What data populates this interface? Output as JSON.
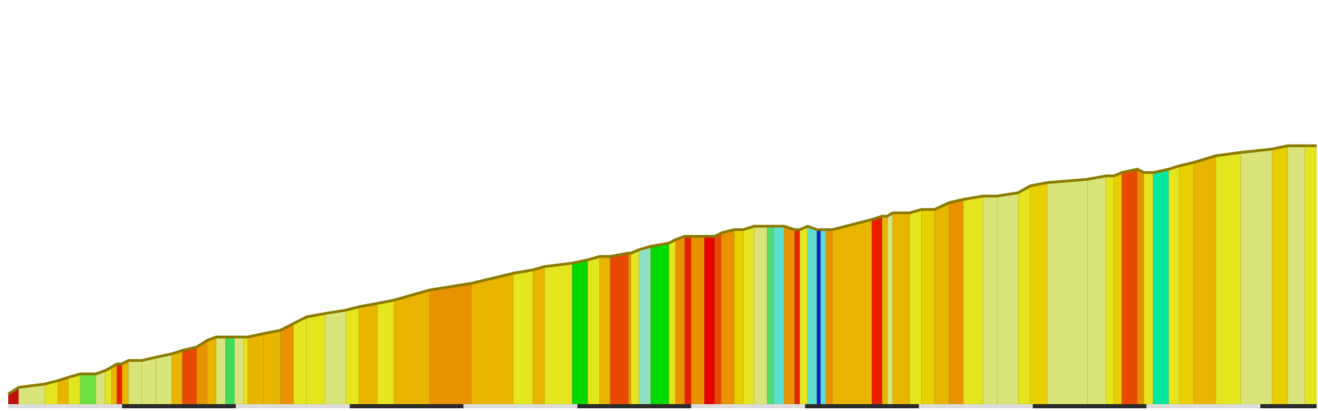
{
  "chart_data": {
    "type": "area",
    "title": "",
    "xlabel": "",
    "ylabel": "",
    "grid": false,
    "legend": "none",
    "x_range": [
      0,
      100
    ],
    "y_range": [
      0,
      100
    ],
    "x_ticks": [
      0,
      8.7,
      17.4,
      26.1,
      34.8,
      43.5,
      52.2,
      60.9,
      69.6,
      78.3,
      87.0,
      95.7
    ],
    "profile": [
      [
        0,
        3
      ],
      [
        0.8,
        5
      ],
      [
        2.8,
        6
      ],
      [
        3.8,
        7
      ],
      [
        4.6,
        8
      ],
      [
        5.5,
        9
      ],
      [
        6.7,
        9
      ],
      [
        7.4,
        10
      ],
      [
        7.9,
        11
      ],
      [
        8.3,
        12
      ],
      [
        8.7,
        12
      ],
      [
        9.2,
        13
      ],
      [
        10.2,
        13
      ],
      [
        11.3,
        14
      ],
      [
        12.5,
        15
      ],
      [
        13.3,
        16
      ],
      [
        14.4,
        17
      ],
      [
        15.2,
        19
      ],
      [
        15.9,
        20
      ],
      [
        16.6,
        20
      ],
      [
        17.3,
        20
      ],
      [
        18.0,
        20
      ],
      [
        18.3,
        20
      ],
      [
        19.5,
        21
      ],
      [
        20.8,
        22
      ],
      [
        21.8,
        24
      ],
      [
        22.8,
        26
      ],
      [
        24.2,
        27
      ],
      [
        25.8,
        28
      ],
      [
        26.8,
        29
      ],
      [
        28.2,
        30
      ],
      [
        29.5,
        31
      ],
      [
        32.2,
        34
      ],
      [
        35.4,
        36
      ],
      [
        38.6,
        39
      ],
      [
        40.1,
        40
      ],
      [
        41.0,
        41
      ],
      [
        43.1,
        42
      ],
      [
        44.3,
        43
      ],
      [
        45.2,
        44
      ],
      [
        46.0,
        44
      ],
      [
        47.4,
        45
      ],
      [
        47.6,
        45
      ],
      [
        48.2,
        46
      ],
      [
        49.1,
        47
      ],
      [
        50.5,
        48
      ],
      [
        51.0,
        49
      ],
      [
        51.7,
        50
      ],
      [
        52.2,
        50
      ],
      [
        53.2,
        50
      ],
      [
        54.0,
        50
      ],
      [
        54.5,
        51
      ],
      [
        55.5,
        52
      ],
      [
        56.2,
        52
      ],
      [
        57.0,
        53
      ],
      [
        58.0,
        53
      ],
      [
        58.5,
        53
      ],
      [
        59.3,
        53
      ],
      [
        60.1,
        52
      ],
      [
        60.5,
        52
      ],
      [
        61.1,
        53
      ],
      [
        61.8,
        52
      ],
      [
        62.1,
        52
      ],
      [
        62.5,
        52
      ],
      [
        63.0,
        52
      ],
      [
        66.0,
        55
      ],
      [
        66.8,
        56
      ],
      [
        67.2,
        56
      ],
      [
        67.6,
        57
      ],
      [
        68.9,
        57
      ],
      [
        69.8,
        58
      ],
      [
        70.8,
        58
      ],
      [
        71.9,
        60
      ],
      [
        73.0,
        61
      ],
      [
        74.5,
        62
      ],
      [
        75.6,
        62
      ],
      [
        77.2,
        63
      ],
      [
        78.1,
        65
      ],
      [
        79.4,
        66
      ],
      [
        82.5,
        67
      ],
      [
        83.9,
        68
      ],
      [
        84.5,
        68
      ],
      [
        85.1,
        69
      ],
      [
        86.3,
        70
      ],
      [
        86.8,
        69
      ],
      [
        87.5,
        69
      ],
      [
        88.7,
        70
      ],
      [
        89.5,
        71
      ],
      [
        90.6,
        72
      ],
      [
        92.3,
        74
      ],
      [
        94.2,
        75
      ],
      [
        96.6,
        76
      ],
      [
        97.8,
        77
      ],
      [
        99.1,
        77
      ],
      [
        100,
        77
      ]
    ],
    "segment_colors": [
      "#c01010",
      "#d9e57a",
      "#e5e51f",
      "#e8b500",
      "#e5e51f",
      "#6ee043",
      "#d9e57a",
      "#e5e51f",
      "#e8b500",
      "#e82000",
      "#e8b500",
      "#d9e57a",
      "#d9e57a",
      "#d9e57a",
      "#e8b500",
      "#e84800",
      "#e89200",
      "#e8b500",
      "#d9e57a",
      "#3ddc5a",
      "#d9e57a",
      "#e5e51f",
      "#e8b500",
      "#e8b500",
      "#e89200",
      "#e5e51f",
      "#e5e51f",
      "#d9e57a",
      "#e5e51f",
      "#e8b500",
      "#e5e51f",
      "#e8b500",
      "#e89200",
      "#e8b500",
      "#e5e51f",
      "#e8b500",
      "#e5e51f",
      "#00d800",
      "#e5e51f",
      "#e8b500",
      "#e84800",
      "#e89200",
      "#e5e51f",
      "#8fe0c0",
      "#00d800",
      "#e5e51f",
      "#e89200",
      "#e82000",
      "#e89200",
      "#e80000",
      "#e84800",
      "#e89200",
      "#e8d000",
      "#e5e51f",
      "#d9e57a",
      "#52dc70",
      "#5ee0d0",
      "#e89200",
      "#e82000",
      "#e5e51f",
      "#5ee0d0",
      "#0020e8",
      "#5ee0d0",
      "#e89200",
      "#e8b500",
      "#e82000",
      "#e8b500",
      "#d9e57a",
      "#e8b500",
      "#e5e51f",
      "#e8d000",
      "#e8b500",
      "#e89200",
      "#e5e51f",
      "#d9e57a",
      "#d9e57a",
      "#e5e51f",
      "#e8d000",
      "#d9e57a",
      "#d9e57a",
      "#e5e51f",
      "#e8d000",
      "#e84800",
      "#e89200",
      "#e5e51f",
      "#00e8a0",
      "#e5e51f",
      "#e8d000",
      "#e8b500",
      "#e5e51f",
      "#d9e57a",
      "#e8d000",
      "#d9e57a",
      "#e5e51f",
      "#00d800"
    ]
  }
}
